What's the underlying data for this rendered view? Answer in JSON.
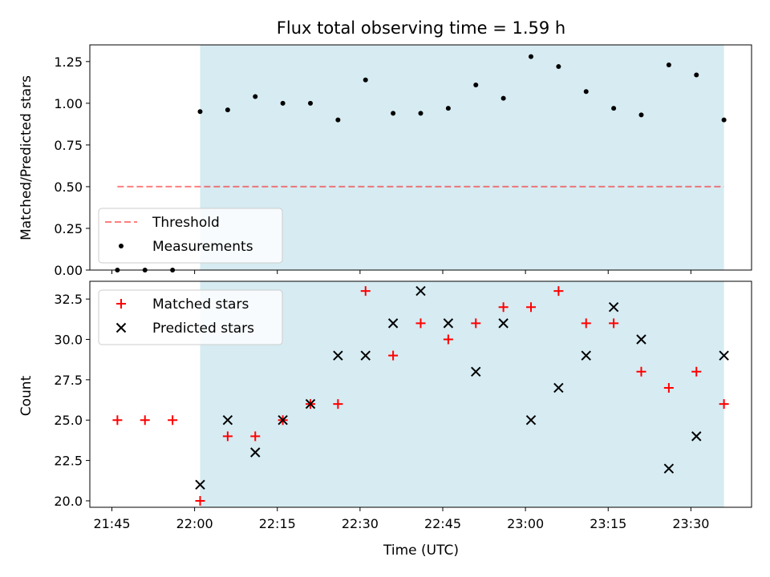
{
  "chart_data": [
    {
      "type": "scatter",
      "title": "Flux total observing time = 1.59 h",
      "xlabel": "",
      "ylabel": "Matched/Predicted stars",
      "ylim": [
        0,
        1.35
      ],
      "xlim": [
        "21:41",
        "23:41"
      ],
      "yticks": [
        "0.00",
        "0.25",
        "0.50",
        "0.75",
        "1.00",
        "1.25"
      ],
      "shaded_region": {
        "start": "22:01",
        "end": "23:36",
        "color": "#add8e6"
      },
      "grid": false,
      "legend_position": "lower-left",
      "series": [
        {
          "name": "Threshold",
          "style": "dashed-line",
          "color": "#ff0000",
          "x": [
            "21:46",
            "23:36"
          ],
          "y": [
            0.5,
            0.5
          ]
        },
        {
          "name": "Measurements",
          "style": "dot",
          "color": "#000000",
          "x": [
            "21:46",
            "21:51",
            "21:56",
            "22:01",
            "22:06",
            "22:11",
            "22:16",
            "22:21",
            "22:26",
            "22:31",
            "22:36",
            "22:41",
            "22:46",
            "22:51",
            "22:56",
            "23:01",
            "23:06",
            "23:11",
            "23:16",
            "23:21",
            "23:26",
            "23:31",
            "23:36"
          ],
          "y": [
            0.0,
            0.0,
            0.0,
            0.95,
            0.96,
            1.04,
            1.0,
            1.0,
            0.9,
            1.14,
            0.94,
            0.94,
            0.97,
            1.11,
            1.03,
            1.28,
            1.22,
            1.07,
            0.97,
            0.93,
            1.23,
            1.17,
            0.9
          ]
        }
      ]
    },
    {
      "type": "scatter",
      "title": "",
      "xlabel": "Time (UTC)",
      "ylabel": "Count",
      "ylim": [
        19.6,
        33.6
      ],
      "xlim": [
        "21:41",
        "23:41"
      ],
      "yticks": [
        "20.0",
        "22.5",
        "25.0",
        "27.5",
        "30.0",
        "32.5"
      ],
      "xticks": [
        "21:45",
        "22:00",
        "22:15",
        "22:30",
        "22:45",
        "23:00",
        "23:15",
        "23:30"
      ],
      "shaded_region": {
        "start": "22:01",
        "end": "23:36",
        "color": "#add8e6"
      },
      "grid": false,
      "legend_position": "top-left",
      "series": [
        {
          "name": "Matched stars",
          "marker": "plus",
          "color": "#ff0000",
          "x": [
            "21:46",
            "21:51",
            "21:56",
            "22:01",
            "22:06",
            "22:11",
            "22:16",
            "22:21",
            "22:26",
            "22:31",
            "22:36",
            "22:41",
            "22:46",
            "22:51",
            "22:56",
            "23:01",
            "23:06",
            "23:11",
            "23:16",
            "23:21",
            "23:26",
            "23:31",
            "23:36"
          ],
          "y": [
            25,
            25,
            25,
            20,
            24,
            24,
            25,
            26,
            26,
            33,
            29,
            31,
            30,
            31,
            32,
            32,
            33,
            31,
            31,
            28,
            27,
            28,
            26
          ]
        },
        {
          "name": "Predicted stars",
          "marker": "x",
          "color": "#000000",
          "x": [
            "22:01",
            "22:06",
            "22:11",
            "22:16",
            "22:21",
            "22:26",
            "22:31",
            "22:36",
            "22:41",
            "22:46",
            "22:51",
            "22:56",
            "23:01",
            "23:06",
            "23:11",
            "23:16",
            "23:21",
            "23:26",
            "23:31",
            "23:36"
          ],
          "y": [
            21,
            25,
            23,
            25,
            26,
            29,
            29,
            31,
            33,
            31,
            28,
            31,
            25,
            27,
            29,
            32,
            30,
            22,
            24,
            29
          ]
        }
      ]
    }
  ]
}
